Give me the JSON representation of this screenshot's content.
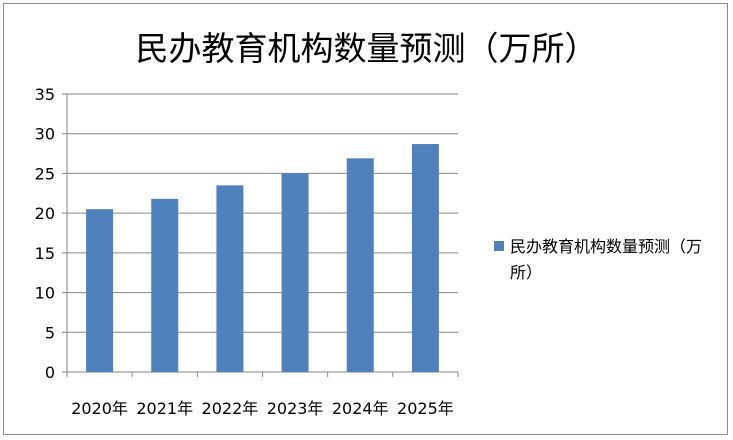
{
  "chart_data": {
    "type": "bar",
    "title": "民办教育机构数量预测（万所）",
    "categories": [
      "2020年",
      "2021年",
      "2022年",
      "2023年",
      "2024年",
      "2025年"
    ],
    "series": [
      {
        "name": "民办教育机构数量预测（万所）",
        "values": [
          20.5,
          21.8,
          23.5,
          25.0,
          26.9,
          28.7
        ]
      }
    ],
    "xlabel": "",
    "ylabel": "",
    "ylim": [
      0,
      35
    ],
    "yticks": [
      0,
      5,
      10,
      15,
      20,
      25,
      30,
      35
    ],
    "grid": true,
    "legend": "right",
    "bar_color": "#4F81BD",
    "grid_color": "#868686"
  }
}
